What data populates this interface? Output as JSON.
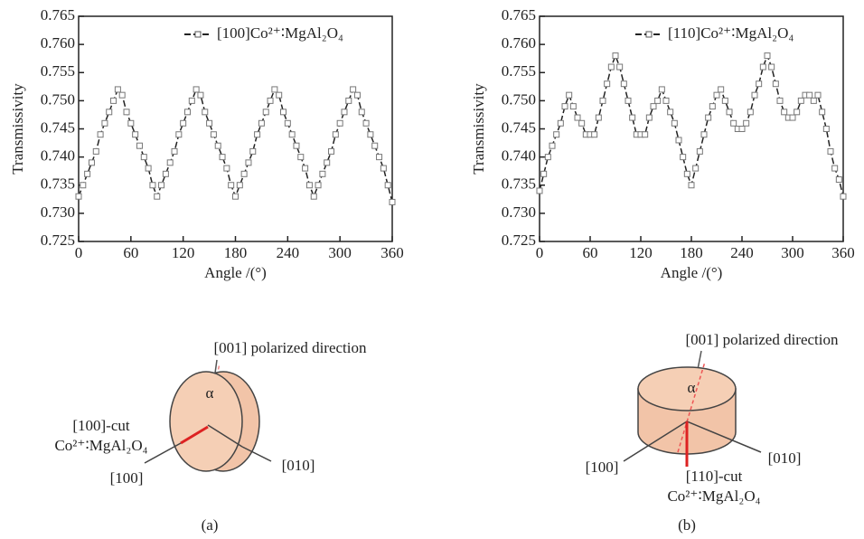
{
  "chart_data": [
    {
      "type": "line",
      "y_label": "Transmissivity",
      "x_label": "Angle /(°)",
      "xlim": [
        0,
        360
      ],
      "xticks": [
        0,
        60,
        120,
        180,
        240,
        300,
        360
      ],
      "ylim": [
        0.725,
        0.765
      ],
      "yticks": [
        0.725,
        {
          "value": 0.73,
          "label": "0.730"
        },
        0.735,
        {
          "value": 0.74,
          "label": "0.740"
        },
        0.745,
        {
          "value": 0.75,
          "label": "0.750"
        },
        0.755,
        {
          "value": 0.76,
          "label": "0.760"
        },
        0.765
      ],
      "x": [
        0,
        5,
        10,
        15,
        20,
        25,
        30,
        35,
        40,
        45,
        50,
        55,
        60,
        65,
        70,
        75,
        80,
        85,
        90,
        95,
        100,
        105,
        110,
        115,
        120,
        125,
        130,
        135,
        140,
        145,
        150,
        155,
        160,
        165,
        170,
        175,
        180,
        185,
        190,
        195,
        200,
        205,
        210,
        215,
        220,
        225,
        230,
        235,
        240,
        245,
        250,
        255,
        260,
        265,
        270,
        275,
        280,
        285,
        290,
        295,
        300,
        305,
        310,
        315,
        320,
        325,
        330,
        335,
        340,
        345,
        350,
        355,
        360
      ],
      "series": [
        {
          "name": "[100]Co²⁺∶MgAl₂O₄",
          "color": "#222222",
          "values": [
            0.733,
            0.735,
            0.737,
            0.739,
            0.741,
            0.744,
            0.746,
            0.748,
            0.75,
            0.752,
            0.751,
            0.748,
            0.746,
            0.744,
            0.742,
            0.74,
            0.738,
            0.735,
            0.733,
            0.735,
            0.737,
            0.739,
            0.741,
            0.744,
            0.746,
            0.748,
            0.75,
            0.752,
            0.751,
            0.748,
            0.746,
            0.744,
            0.742,
            0.74,
            0.738,
            0.735,
            0.733,
            0.735,
            0.737,
            0.739,
            0.741,
            0.744,
            0.746,
            0.748,
            0.75,
            0.752,
            0.751,
            0.748,
            0.746,
            0.744,
            0.742,
            0.74,
            0.738,
            0.735,
            0.733,
            0.735,
            0.737,
            0.739,
            0.741,
            0.744,
            0.746,
            0.748,
            0.75,
            0.752,
            0.751,
            0.748,
            0.746,
            0.744,
            0.742,
            0.74,
            0.738,
            0.735,
            0.732
          ]
        }
      ]
    },
    {
      "type": "line",
      "y_label": "Transmissivity",
      "x_label": "Angle /(°)",
      "xlim": [
        0,
        360
      ],
      "xticks": [
        0,
        60,
        120,
        180,
        240,
        300,
        360
      ],
      "ylim": [
        0.725,
        0.765
      ],
      "yticks": [
        0.725,
        {
          "value": 0.73,
          "label": "0.730"
        },
        0.735,
        {
          "value": 0.74,
          "label": "0.740"
        },
        0.745,
        {
          "value": 0.75,
          "label": "0.750"
        },
        0.755,
        {
          "value": 0.76,
          "label": "0.760"
        },
        0.765
      ],
      "x": [
        0,
        5,
        10,
        15,
        20,
        25,
        30,
        35,
        40,
        45,
        50,
        55,
        60,
        65,
        70,
        75,
        80,
        85,
        90,
        95,
        100,
        105,
        110,
        115,
        120,
        125,
        130,
        135,
        140,
        145,
        150,
        155,
        160,
        165,
        170,
        175,
        180,
        185,
        190,
        195,
        200,
        205,
        210,
        215,
        220,
        225,
        230,
        235,
        240,
        245,
        250,
        255,
        260,
        265,
        270,
        275,
        280,
        285,
        290,
        295,
        300,
        305,
        310,
        315,
        320,
        325,
        330,
        335,
        340,
        345,
        350,
        355,
        360
      ],
      "series": [
        {
          "name": "[110]Co²⁺∶MgAl₂O₄",
          "color": "#222222",
          "values": [
            0.734,
            0.737,
            0.74,
            0.742,
            0.744,
            0.746,
            0.749,
            0.751,
            0.749,
            0.747,
            0.746,
            0.744,
            0.744,
            0.744,
            0.747,
            0.75,
            0.753,
            0.756,
            0.758,
            0.756,
            0.753,
            0.75,
            0.747,
            0.744,
            0.744,
            0.744,
            0.747,
            0.749,
            0.75,
            0.752,
            0.75,
            0.748,
            0.746,
            0.743,
            0.74,
            0.737,
            0.735,
            0.738,
            0.741,
            0.744,
            0.747,
            0.749,
            0.751,
            0.752,
            0.75,
            0.748,
            0.746,
            0.745,
            0.745,
            0.746,
            0.748,
            0.751,
            0.753,
            0.756,
            0.758,
            0.756,
            0.753,
            0.75,
            0.748,
            0.747,
            0.747,
            0.748,
            0.75,
            0.751,
            0.751,
            0.75,
            0.751,
            0.748,
            0.745,
            0.741,
            0.738,
            0.736,
            0.733
          ]
        }
      ]
    }
  ],
  "diagrams": [
    {
      "axis_top": "[001] polarized direction",
      "angle": "α",
      "cut": "[100]-cut",
      "crystal": "Co²⁺∶MgAl₂O₄",
      "axis_left": "[100]",
      "axis_right": "[010]",
      "caption": "(a)"
    },
    {
      "axis_top": "[001] polarized direction",
      "angle": "α",
      "cut": "[110]-cut",
      "crystal": "Co²⁺∶MgAl₂O₄",
      "axis_left": "[100]",
      "axis_right": "[010]",
      "caption": "(b)"
    }
  ]
}
